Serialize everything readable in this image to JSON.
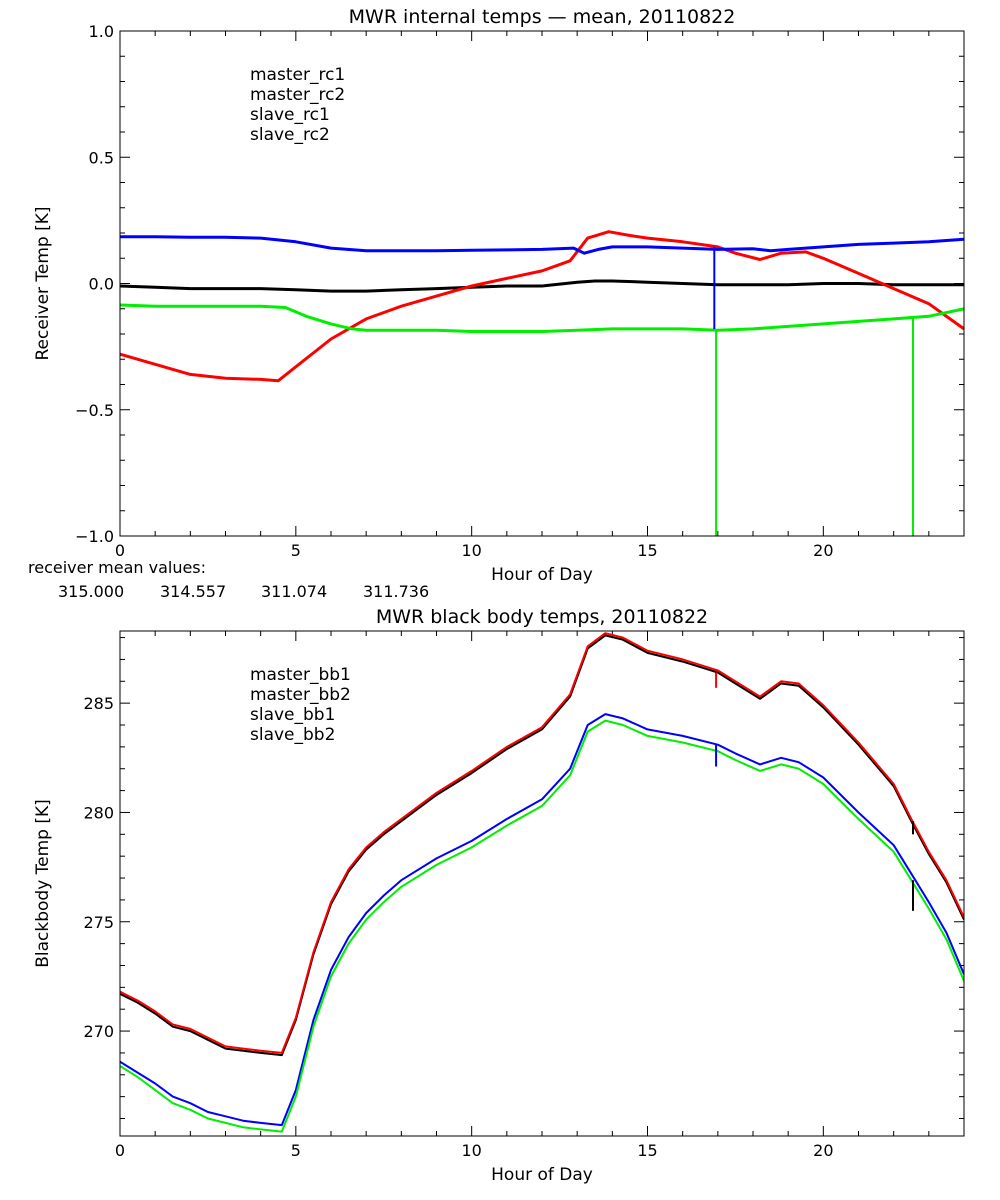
{
  "colors": {
    "black": "#000000",
    "red": "#ff0000",
    "blue": "#0000ff",
    "green": "#00ee00"
  },
  "mean_values": {
    "label": "receiver mean values:",
    "values": [
      {
        "text": "315.000",
        "color": "#000000"
      },
      {
        "text": "314.557",
        "color": "#ff0000"
      },
      {
        "text": "311.074",
        "color": "#0000ff"
      },
      {
        "text": "311.736",
        "color": "#00ee00"
      }
    ]
  },
  "chart_data": [
    {
      "type": "line",
      "title": "MWR internal temps — mean, 20110822",
      "xlabel": "Hour of Day",
      "ylabel": "Receiver Temp [K]",
      "xlim": [
        0,
        24
      ],
      "ylim": [
        -1.0,
        1.0
      ],
      "xticks": [
        0,
        5,
        10,
        15,
        20
      ],
      "xtick_labels": [
        "0",
        "5",
        "10",
        "15",
        "20"
      ],
      "yticks": [
        -1.0,
        -0.5,
        0.0,
        0.5,
        1.0
      ],
      "ytick_labels": [
        "−1.0",
        "−0.5",
        "0.0",
        "0.5",
        "1.0"
      ],
      "grid": false,
      "legend_position": "top-left",
      "series": [
        {
          "name": "master_rc1",
          "color": "#000000",
          "x": [
            0,
            1,
            2,
            3,
            4,
            5,
            6,
            7,
            8,
            9,
            10,
            11,
            12,
            13,
            13.5,
            14,
            15,
            16,
            17,
            18,
            19,
            20,
            21,
            22,
            23,
            24
          ],
          "y": [
            -0.01,
            -0.015,
            -0.02,
            -0.02,
            -0.02,
            -0.025,
            -0.03,
            -0.03,
            -0.025,
            -0.02,
            -0.015,
            -0.01,
            -0.01,
            0.005,
            0.01,
            0.01,
            0.005,
            0.0,
            -0.005,
            -0.005,
            -0.005,
            0.0,
            0.0,
            -0.005,
            -0.005,
            -0.005
          ]
        },
        {
          "name": "master_rc2",
          "color": "#ff0000",
          "x": [
            0,
            1,
            2,
            3,
            4,
            4.5,
            5,
            6,
            7,
            8,
            9,
            10,
            11,
            12,
            12.8,
            13.3,
            13.9,
            14.5,
            15,
            16,
            17,
            17.5,
            18.2,
            18.8,
            19.5,
            20,
            21,
            22,
            23,
            24
          ],
          "y": [
            -0.28,
            -0.32,
            -0.36,
            -0.375,
            -0.38,
            -0.385,
            -0.33,
            -0.22,
            -0.14,
            -0.09,
            -0.05,
            -0.01,
            0.02,
            0.05,
            0.09,
            0.18,
            0.205,
            0.19,
            0.18,
            0.165,
            0.145,
            0.12,
            0.095,
            0.12,
            0.125,
            0.1,
            0.04,
            -0.02,
            -0.08,
            -0.18
          ]
        },
        {
          "name": "slave_rc1",
          "color": "#0000ff",
          "x": [
            0,
            1,
            2,
            3,
            4,
            5,
            6,
            7,
            8,
            9,
            10,
            11,
            12,
            12.9,
            13.2,
            13.6,
            14,
            15,
            16,
            17,
            18,
            18.5,
            19,
            20,
            21,
            22,
            23,
            24
          ],
          "y": [
            0.185,
            0.185,
            0.183,
            0.183,
            0.18,
            0.165,
            0.14,
            0.13,
            0.13,
            0.13,
            0.132,
            0.133,
            0.135,
            0.14,
            0.12,
            0.135,
            0.145,
            0.145,
            0.14,
            0.135,
            0.138,
            0.13,
            0.135,
            0.145,
            0.155,
            0.16,
            0.165,
            0.175
          ]
        },
        {
          "name": "slave_rc2",
          "color": "#00ee00",
          "x": [
            0,
            1,
            2,
            3,
            4,
            4.7,
            5.3,
            6,
            6.6,
            7,
            8,
            9,
            10,
            11,
            12,
            13,
            14,
            15,
            16,
            17,
            18,
            19,
            20,
            21,
            22,
            23,
            24
          ],
          "y": [
            -0.085,
            -0.09,
            -0.09,
            -0.09,
            -0.09,
            -0.095,
            -0.13,
            -0.16,
            -0.18,
            -0.185,
            -0.185,
            -0.185,
            -0.19,
            -0.19,
            -0.19,
            -0.185,
            -0.18,
            -0.18,
            -0.18,
            -0.185,
            -0.18,
            -0.17,
            -0.16,
            -0.15,
            -0.14,
            -0.13,
            -0.1
          ]
        }
      ],
      "spikes": [
        {
          "color": "#0000ff",
          "x": 16.9,
          "y_from": 0.145,
          "y_to": -0.18
        },
        {
          "color": "#00ee00",
          "x": 16.95,
          "y_from": -0.18,
          "y_to": -1.0
        },
        {
          "color": "#00ee00",
          "x": 22.55,
          "y_from": -0.14,
          "y_to": -1.0
        }
      ]
    },
    {
      "type": "line",
      "title": "MWR black body temps, 20110822",
      "xlabel": "Hour of Day",
      "ylabel": "Blackbody Temp [K]",
      "xlim": [
        0,
        24
      ],
      "ylim": [
        265.2,
        288.3
      ],
      "xticks": [
        0,
        5,
        10,
        15,
        20
      ],
      "xtick_labels": [
        "0",
        "5",
        "10",
        "15",
        "20"
      ],
      "yticks": [
        270,
        275,
        280,
        285
      ],
      "ytick_labels": [
        "270",
        "275",
        "280",
        "285"
      ],
      "grid": false,
      "legend_position": "top-left",
      "series": [
        {
          "name": "master_bb1",
          "color": "#000000",
          "x": [
            0,
            0.5,
            1,
            1.5,
            2,
            2.5,
            3,
            3.5,
            4,
            4.6,
            5,
            5.5,
            6,
            6.5,
            7,
            7.5,
            8,
            9,
            10,
            11,
            12,
            12.8,
            13.3,
            13.8,
            14.3,
            15,
            16,
            17,
            17.5,
            18.2,
            18.8,
            19.3,
            20,
            21,
            22,
            22.5,
            23,
            23.5,
            24
          ],
          "y": [
            271.7,
            271.3,
            270.8,
            270.2,
            270.0,
            269.6,
            269.2,
            269.1,
            269.0,
            268.9,
            270.5,
            273.5,
            275.8,
            277.3,
            278.3,
            279.0,
            279.6,
            280.8,
            281.8,
            282.9,
            283.8,
            285.3,
            287.5,
            288.1,
            287.9,
            287.3,
            286.9,
            286.4,
            285.9,
            285.2,
            285.9,
            285.8,
            284.8,
            283.1,
            281.2,
            279.6,
            278.1,
            276.8,
            275.1
          ]
        },
        {
          "name": "master_bb2",
          "color": "#ff0000",
          "x": [
            0,
            0.5,
            1,
            1.5,
            2,
            2.5,
            3,
            3.5,
            4,
            4.6,
            5,
            5.5,
            6,
            6.5,
            7,
            7.5,
            8,
            9,
            10,
            11,
            12,
            12.8,
            13.3,
            13.8,
            14.3,
            15,
            16,
            17,
            17.5,
            18.2,
            18.8,
            19.3,
            20,
            21,
            22,
            22.5,
            23,
            23.5,
            24
          ],
          "y": [
            271.8,
            271.4,
            270.9,
            270.3,
            270.1,
            269.7,
            269.3,
            269.2,
            269.1,
            269.0,
            270.6,
            273.6,
            275.9,
            277.4,
            278.4,
            279.1,
            279.7,
            280.9,
            281.9,
            283.0,
            283.9,
            285.4,
            287.6,
            288.2,
            288.0,
            287.4,
            287.0,
            286.5,
            286.0,
            285.3,
            286.0,
            285.9,
            284.9,
            283.2,
            281.3,
            279.7,
            278.2,
            276.9,
            275.2
          ]
        },
        {
          "name": "slave_bb1",
          "color": "#0000ff",
          "x": [
            0,
            0.5,
            1,
            1.5,
            2,
            2.5,
            3,
            3.5,
            4,
            4.6,
            5,
            5.5,
            6,
            6.5,
            7,
            7.5,
            8,
            9,
            10,
            11,
            12,
            12.8,
            13.3,
            13.8,
            14.3,
            15,
            16,
            17,
            17.5,
            18.2,
            18.8,
            19.3,
            20,
            21,
            22,
            22.5,
            23,
            23.5,
            24
          ],
          "y": [
            268.6,
            268.1,
            267.6,
            267.0,
            266.7,
            266.3,
            266.1,
            265.9,
            265.8,
            265.7,
            267.3,
            270.5,
            272.8,
            274.3,
            275.4,
            276.2,
            276.9,
            277.9,
            278.7,
            279.7,
            280.6,
            282.0,
            284.0,
            284.5,
            284.3,
            283.8,
            283.5,
            283.1,
            282.7,
            282.2,
            282.5,
            282.3,
            281.6,
            280.0,
            278.5,
            277.2,
            275.9,
            274.5,
            272.6
          ]
        },
        {
          "name": "slave_bb2",
          "color": "#00ee00",
          "x": [
            0,
            0.5,
            1,
            1.5,
            2,
            2.5,
            3,
            3.5,
            4,
            4.6,
            5,
            5.5,
            6,
            6.5,
            7,
            7.5,
            8,
            9,
            10,
            11,
            12,
            12.8,
            13.3,
            13.8,
            14.3,
            15,
            16,
            17,
            17.5,
            18.2,
            18.8,
            19.3,
            20,
            21,
            22,
            22.5,
            23,
            23.5,
            24
          ],
          "y": [
            268.4,
            267.9,
            267.3,
            266.7,
            266.4,
            266.0,
            265.8,
            265.6,
            265.5,
            265.4,
            267.0,
            270.2,
            272.5,
            274.0,
            275.1,
            275.9,
            276.6,
            277.6,
            278.4,
            279.4,
            280.3,
            281.7,
            283.7,
            284.2,
            284.0,
            283.5,
            283.2,
            282.8,
            282.4,
            281.9,
            282.2,
            282.0,
            281.3,
            279.7,
            278.2,
            276.9,
            275.6,
            274.2,
            272.3
          ]
        }
      ],
      "spikes": [
        {
          "color": "#ff0000",
          "x": 16.95,
          "y_from": 286.4,
          "y_to": 285.7
        },
        {
          "color": "#0000ff",
          "x": 16.95,
          "y_from": 283.1,
          "y_to": 282.1
        },
        {
          "color": "#000000",
          "x": 22.55,
          "y_from": 279.6,
          "y_to": 279.0
        },
        {
          "color": "#000000",
          "x": 22.55,
          "y_from": 276.9,
          "y_to": 275.5
        }
      ]
    }
  ]
}
